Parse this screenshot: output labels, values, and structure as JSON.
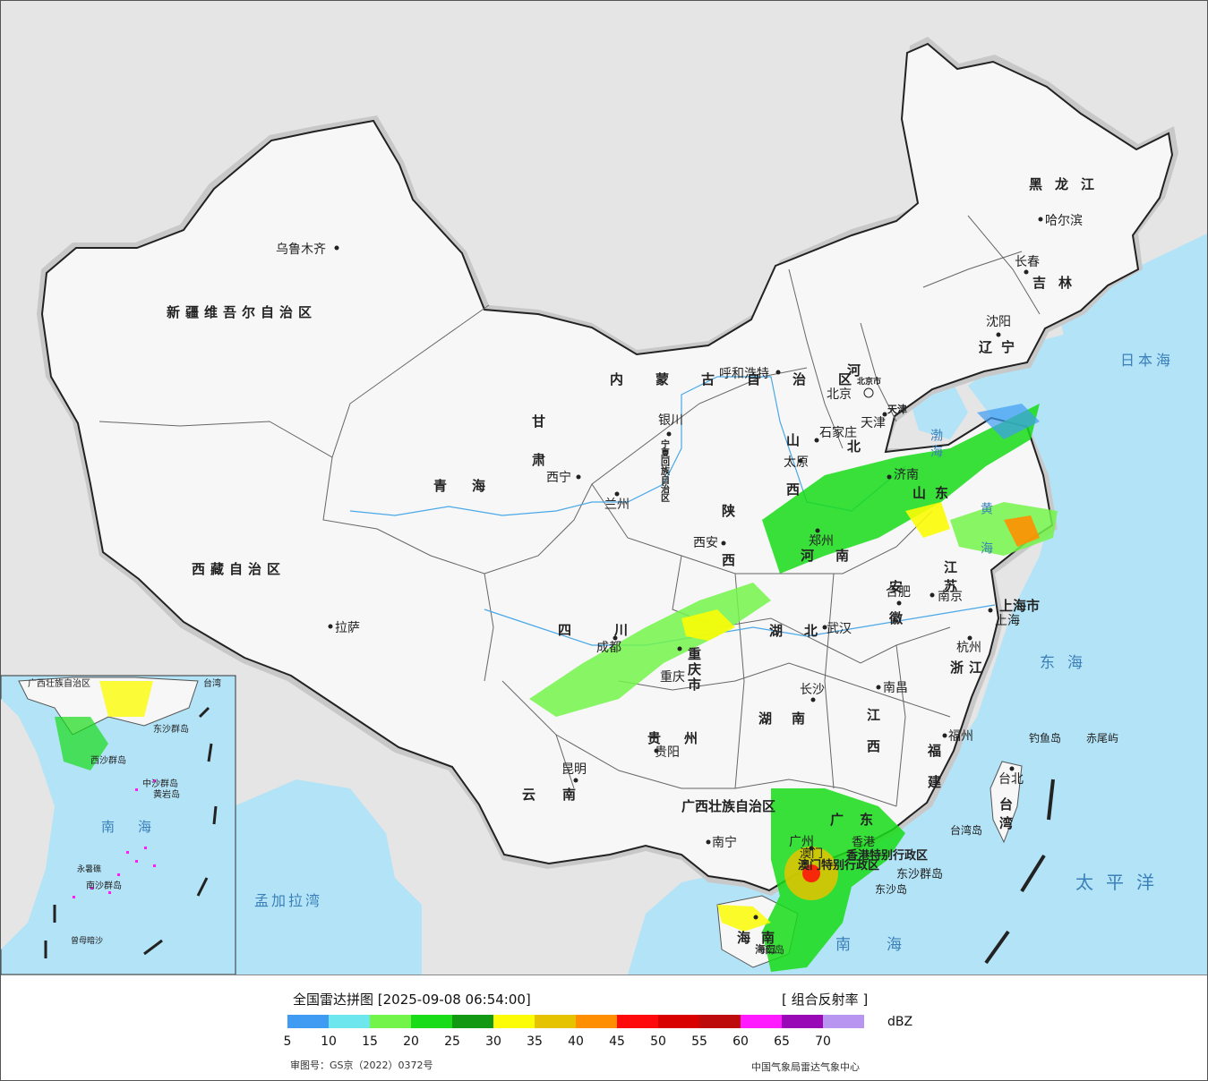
{
  "legend": {
    "title": "全国雷达拼图 [2025-09-08 06:54:00]",
    "product": "[ 组合反射率 ]",
    "unit": "dBZ",
    "colors": [
      "#3f9cf2",
      "#6ee6ee",
      "#73f44a",
      "#18dc18",
      "#139813",
      "#fbfc06",
      "#e5c300",
      "#ff8f00",
      "#ff0a0a",
      "#d90000",
      "#bd0a0a",
      "#ff1aff",
      "#9a09b6",
      "#b795f1"
    ],
    "ticks": [
      "5",
      "10",
      "15",
      "20",
      "25",
      "30",
      "35",
      "40",
      "45",
      "50",
      "55",
      "60",
      "65",
      "70"
    ],
    "approval": "审图号：GS京（2022）0372号",
    "producer": "中国气象局雷达气象中心"
  },
  "provinces": [
    {
      "name": "新疆维吾尔自治区"
    },
    {
      "name": "西藏自治区"
    },
    {
      "name": "青海"
    },
    {
      "name": "甘肃"
    },
    {
      "name": "内蒙古自治区"
    },
    {
      "name": "黑龙江"
    },
    {
      "name": "吉林"
    },
    {
      "name": "辽宁"
    },
    {
      "name": "河北"
    },
    {
      "name": "山西"
    },
    {
      "name": "陕西"
    },
    {
      "name": "山东"
    },
    {
      "name": "河南"
    },
    {
      "name": "江苏"
    },
    {
      "name": "安徽"
    },
    {
      "name": "上海市"
    },
    {
      "name": "浙江"
    },
    {
      "name": "湖北"
    },
    {
      "name": "四川"
    },
    {
      "name": "重庆市"
    },
    {
      "name": "贵州"
    },
    {
      "name": "云南"
    },
    {
      "name": "湖南"
    },
    {
      "name": "江西"
    },
    {
      "name": "福建"
    },
    {
      "name": "台湾"
    },
    {
      "name": "广西壮族自治区"
    },
    {
      "name": "广东"
    },
    {
      "name": "海南"
    },
    {
      "name": "宁夏回族自治区"
    },
    {
      "name": "北京市"
    },
    {
      "name": "天津"
    },
    {
      "name": "香港特别行政区"
    },
    {
      "name": "澳门特别行政区"
    }
  ],
  "cities": [
    {
      "name": "乌鲁木齐"
    },
    {
      "name": "拉萨"
    },
    {
      "name": "西宁"
    },
    {
      "name": "兰州"
    },
    {
      "name": "银川"
    },
    {
      "name": "呼和浩特"
    },
    {
      "name": "哈尔滨"
    },
    {
      "name": "长春"
    },
    {
      "name": "沈阳"
    },
    {
      "name": "北京"
    },
    {
      "name": "天津"
    },
    {
      "name": "石家庄"
    },
    {
      "name": "太原"
    },
    {
      "name": "济南"
    },
    {
      "name": "郑州"
    },
    {
      "name": "西安"
    },
    {
      "name": "合肥"
    },
    {
      "name": "南京"
    },
    {
      "name": "上海"
    },
    {
      "name": "杭州"
    },
    {
      "name": "武汉"
    },
    {
      "name": "成都"
    },
    {
      "name": "重庆"
    },
    {
      "name": "贵阳"
    },
    {
      "name": "昆明"
    },
    {
      "name": "长沙"
    },
    {
      "name": "南昌"
    },
    {
      "name": "福州"
    },
    {
      "name": "台北"
    },
    {
      "name": "南宁"
    },
    {
      "name": "广州"
    },
    {
      "name": "海口"
    },
    {
      "name": "香港"
    },
    {
      "name": "澳门"
    }
  ],
  "seas": [
    {
      "name": "日本海"
    },
    {
      "name": "东海"
    },
    {
      "name": "太平洋"
    },
    {
      "name": "南海"
    },
    {
      "name": "孟加拉湾"
    },
    {
      "name": "渤海"
    },
    {
      "name": "黄海"
    }
  ],
  "islands": [
    {
      "name": "钓鱼岛"
    },
    {
      "name": "赤尾屿"
    },
    {
      "name": "台湾岛"
    },
    {
      "name": "东沙群岛"
    },
    {
      "name": "东沙岛"
    },
    {
      "name": "海南岛"
    }
  ],
  "inset": {
    "labels": [
      {
        "name": "南海"
      },
      {
        "name": "西沙群岛"
      },
      {
        "name": "中沙群岛"
      },
      {
        "name": "黄岩岛"
      },
      {
        "name": "永暑礁"
      },
      {
        "name": "南沙群岛"
      },
      {
        "name": "曾母暗沙"
      },
      {
        "name": "东沙群岛"
      },
      {
        "name": "广西壮族自治区"
      },
      {
        "name": "台湾"
      }
    ]
  }
}
